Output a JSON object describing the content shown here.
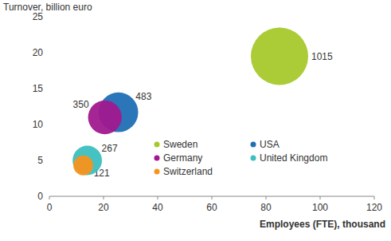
{
  "chart_data": {
    "type": "bubble",
    "y_label": "Turnover, billion euro",
    "x_label": "Employees (FTE), thousand",
    "xlim": [
      0,
      120
    ],
    "xticks": [
      0,
      20,
      40,
      60,
      80,
      100,
      120
    ],
    "ylim": [
      0,
      25
    ],
    "yticks": [
      0,
      5,
      10,
      15,
      20,
      25
    ],
    "grid": false,
    "legend": "center",
    "data_labels": true,
    "series": [
      {
        "name": "Sweden",
        "color": "#a6c92b",
        "x": [
          85
        ],
        "values": [
          19.5
        ],
        "size": [
          1015
        ]
      },
      {
        "name": "USA",
        "color": "#1f6fb5",
        "x": [
          25.5
        ],
        "values": [
          11.7
        ],
        "size": [
          483
        ]
      },
      {
        "name": "Germany",
        "color": "#a0198f",
        "x": [
          20.5
        ],
        "values": [
          11
        ],
        "size": [
          350
        ]
      },
      {
        "name": "United Kingdom",
        "color": "#3dbfc0",
        "x": [
          14
        ],
        "values": [
          5
        ],
        "size": [
          267
        ]
      },
      {
        "name": "Switzerland",
        "color": "#f7941d",
        "x": [
          12.5
        ],
        "values": [
          4.3
        ],
        "size": [
          121
        ]
      }
    ]
  }
}
